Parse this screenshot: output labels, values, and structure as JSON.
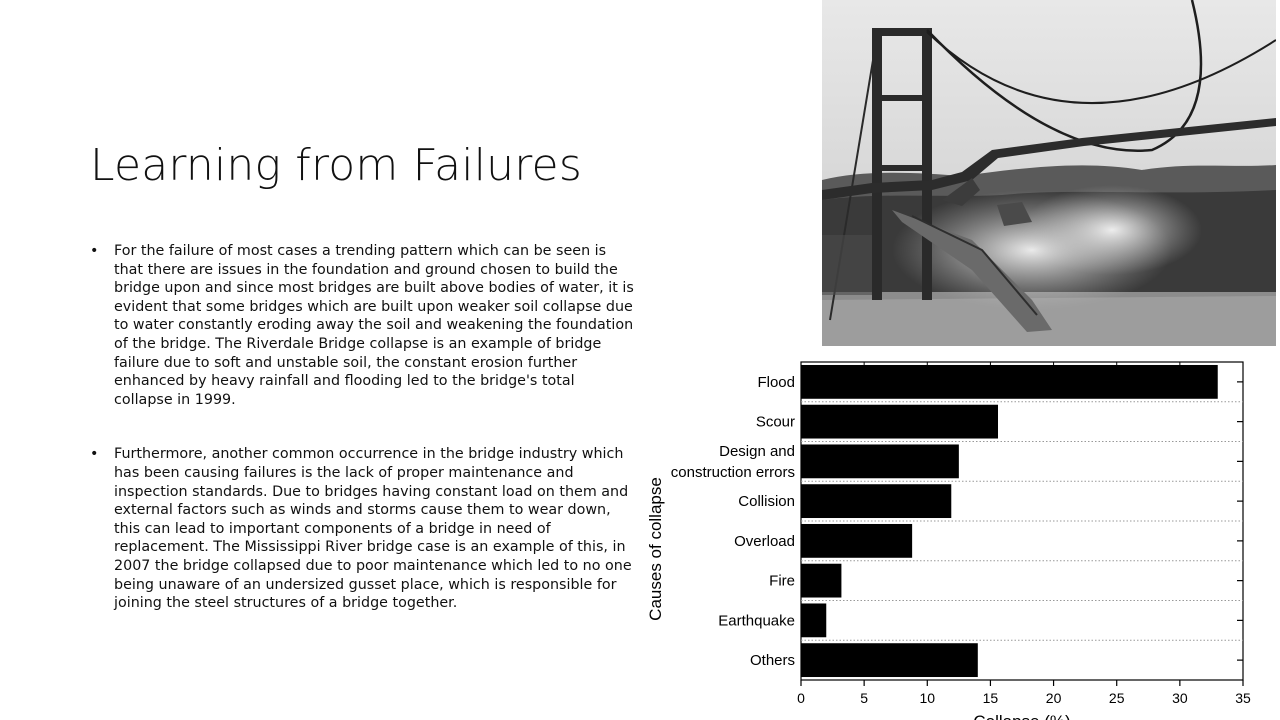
{
  "slide": {
    "title": "Learning from Failures",
    "bullets": [
      "For the failure of most cases a trending pattern which can be seen is that there are issues in the foundation and ground chosen to build the bridge upon and since most bridges are built above bodies of water, it is evident that some bridges which are built upon weaker soil collapse due to water constantly eroding away the soil and weakening the foundation of the bridge. The Riverdale Bridge collapse is an example of bridge failure due to soft and unstable soil, the constant erosion further enhanced by heavy rainfall and flooding led to the bridge's total collapse in 1999.",
      "Furthermore, another common occurrence in the bridge industry which has been causing failures is the lack of proper maintenance and inspection standards. Due to bridges having constant load on them and external factors such as winds and storms cause them to wear down, this can lead to important components of a bridge in need of replacement. The Mississippi River bridge case is an example of this, in 2007 the bridge collapsed due to poor maintenance which led to no one being unaware of an undersized gusset place, which is responsible for joining the steel structures of a bridge together."
    ]
  },
  "photo": {
    "subject": "collapsing suspension bridge (black and white photograph)"
  },
  "chart_data": {
    "type": "bar",
    "orientation": "horizontal",
    "categories": [
      "Flood",
      "Scour",
      "Design and construction errors",
      "Collision",
      "Overload",
      "Fire",
      "Earthquake",
      "Others"
    ],
    "category_lines": [
      [
        "Flood"
      ],
      [
        "Scour"
      ],
      [
        "Design and",
        "construction errors"
      ],
      [
        "Collision"
      ],
      [
        "Overload"
      ],
      [
        "Fire"
      ],
      [
        "Earthquake"
      ],
      [
        "Others"
      ]
    ],
    "values": [
      33,
      15.6,
      12.5,
      11.9,
      8.8,
      3.2,
      2,
      14
    ],
    "xlim": [
      0,
      35
    ],
    "xticks": [
      0,
      5,
      10,
      15,
      20,
      25,
      30,
      35
    ],
    "xlabel": "Collapse (%)",
    "ylabel": "Causes of collapse",
    "grid": "horizontal dotted",
    "bar_color": "#000000"
  }
}
